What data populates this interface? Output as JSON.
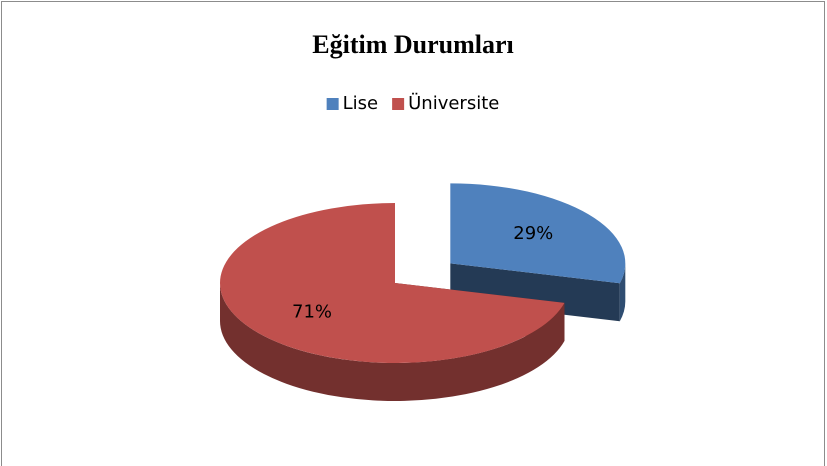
{
  "chart_data": {
    "type": "pie",
    "title": "Eğitim Durumları",
    "categories": [
      "Lise",
      "Üniversite"
    ],
    "values": [
      29,
      71
    ],
    "value_labels": [
      "29%",
      "71%"
    ],
    "colors": [
      "#4f81bd",
      "#c0504d"
    ],
    "legend": "top"
  }
}
